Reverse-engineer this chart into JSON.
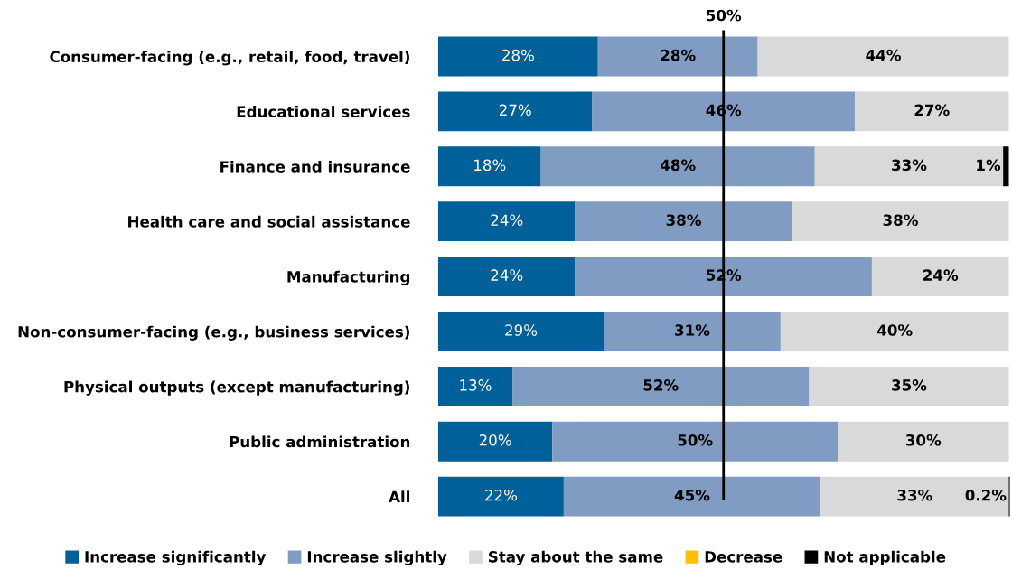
{
  "chart_data": {
    "type": "bar",
    "orientation": "horizontal",
    "stacked": true,
    "legend": "bottom",
    "grid": false,
    "tick_labels": "y",
    "categories": [
      "Consumer-facing (e.g., retail, food, travel)",
      "Educational services",
      "Finance and insurance",
      "Health care and social assistance",
      "Manufacturing",
      "Non-consumer-facing (e.g., business services)",
      "Physical outputs (except manufacturing)",
      "Public administration",
      "All"
    ],
    "series": [
      {
        "name": "Increase significantly",
        "color": "#00609a",
        "values": [
          28,
          27,
          18,
          24,
          24,
          29,
          13,
          20,
          22
        ],
        "value_labels": [
          "28%",
          "27%",
          "18%",
          "24%",
          "24%",
          "29%",
          "13%",
          "20%",
          "22%"
        ]
      },
      {
        "name": "Increase slightly",
        "color": "#819cc2",
        "values": [
          28,
          46,
          48,
          38,
          52,
          31,
          52,
          50,
          45
        ],
        "value_labels": [
          "28%",
          "46%",
          "48%",
          "38%",
          "52%",
          "31%",
          "52%",
          "50%",
          "45%"
        ]
      },
      {
        "name": "Stay about the same",
        "color": "#d9d9d9",
        "values": [
          44,
          27,
          33,
          38,
          24,
          40,
          35,
          30,
          33
        ],
        "value_labels": [
          "44%",
          "27%",
          "33%",
          "38%",
          "24%",
          "40%",
          "35%",
          "30%",
          "33%"
        ]
      },
      {
        "name": "Decrease",
        "color": "#ffc000",
        "values": [
          null,
          null,
          null,
          null,
          null,
          null,
          null,
          null,
          null
        ]
      },
      {
        "name": "Not applicable",
        "color": "#000000",
        "values": [
          null,
          null,
          1,
          null,
          null,
          null,
          null,
          null,
          0.2
        ],
        "value_labels": [
          null,
          null,
          "1%",
          null,
          null,
          null,
          null,
          null,
          "0.2%"
        ]
      }
    ],
    "ref_lines": [
      {
        "axis": "x",
        "value": 50,
        "label": "50%",
        "color": "#000000"
      }
    ]
  }
}
